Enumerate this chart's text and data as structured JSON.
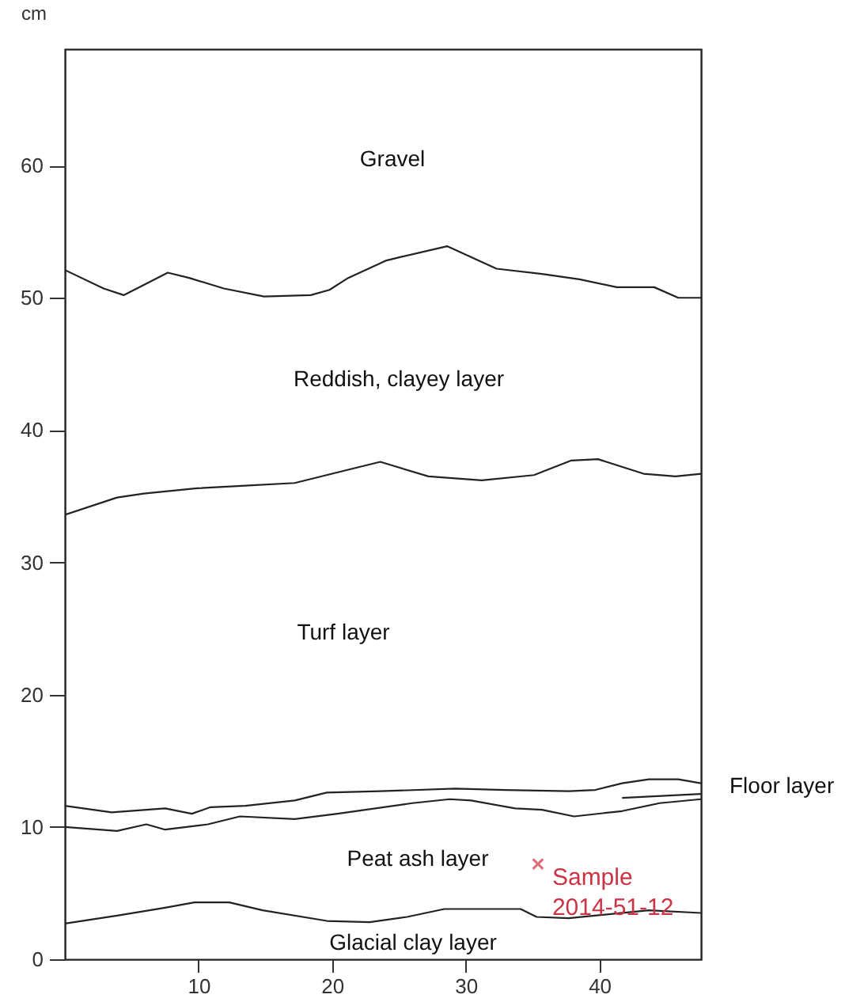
{
  "chart_data": {
    "type": "line",
    "ylabel": "cm",
    "xlim": [
      0,
      47.6
    ],
    "ylim": [
      0,
      68.8
    ],
    "xticks": [
      10,
      20,
      30,
      40
    ],
    "yticks": [
      0,
      10,
      20,
      30,
      40,
      50,
      60
    ],
    "grid": false,
    "line_style": "solid",
    "series": [
      {
        "color": "#222222",
        "x": [
          0,
          2.9,
          4.4,
          7.7,
          9.3,
          11.9,
          14.9,
          18.4,
          19.8,
          21.2,
          24.0,
          25.2,
          28.6,
          32.3,
          35.7,
          38.5,
          41.3,
          44.1,
          45.9,
          47.6
        ],
        "values": [
          52.1,
          50.7,
          50.2,
          51.9,
          51.5,
          50.7,
          50.1,
          50.2,
          50.6,
          51.5,
          52.8,
          53.1,
          53.9,
          52.2,
          51.8,
          51.4,
          50.8,
          50.8,
          50.0,
          50.0
        ]
      },
      {
        "color": "#222222",
        "x": [
          0,
          3.9,
          5.9,
          9.9,
          13.5,
          17.2,
          20.0,
          23.6,
          27.2,
          31.2,
          35.1,
          37.9,
          39.9,
          43.3,
          45.7,
          47.6
        ],
        "values": [
          33.6,
          34.9,
          35.2,
          35.6,
          35.8,
          36.0,
          36.7,
          37.6,
          36.5,
          36.2,
          36.6,
          37.7,
          37.8,
          36.7,
          36.5,
          36.7
        ]
      },
      {
        "color": "#222222",
        "x": [
          0,
          3.5,
          7.5,
          9.5,
          10.9,
          13.5,
          17.2,
          19.6,
          23.6,
          29.2,
          32.9,
          37.7,
          39.7,
          41.7,
          43.7,
          45.9,
          47.6
        ],
        "values": [
          11.6,
          11.1,
          11.4,
          11.0,
          11.5,
          11.6,
          12.0,
          12.6,
          12.7,
          12.9,
          12.8,
          12.7,
          12.8,
          13.3,
          13.6,
          13.6,
          13.3
        ]
      },
      {
        "color": "#222222",
        "x": [
          41.7,
          47.6
        ],
        "values": [
          12.2,
          12.5
        ]
      },
      {
        "color": "#222222",
        "x": [
          0,
          3.9,
          6.1,
          7.5,
          10.7,
          13.1,
          17.2,
          20.4,
          26.0,
          28.8,
          30.4,
          33.7,
          35.7,
          38.1,
          41.7,
          44.5,
          47.6
        ],
        "values": [
          10.0,
          9.7,
          10.2,
          9.8,
          10.2,
          10.8,
          10.6,
          11.0,
          11.8,
          12.1,
          12.0,
          11.4,
          11.3,
          10.8,
          11.2,
          11.8,
          12.1
        ]
      },
      {
        "color": "#222222",
        "x": [
          0,
          3.9,
          7.5,
          9.7,
          12.3,
          14.8,
          19.6,
          22.8,
          25.6,
          28.4,
          34.1,
          35.3,
          37.7,
          43.7,
          47.6
        ],
        "values": [
          2.7,
          3.3,
          3.9,
          4.3,
          4.3,
          3.7,
          2.9,
          2.8,
          3.2,
          3.8,
          3.8,
          3.2,
          3.1,
          3.7,
          3.5
        ]
      },
      {
        "type": "scatter",
        "marker": "cross",
        "name": "Sample\n2014-51-12",
        "color": "#cc3344",
        "x": [
          35.4
        ],
        "values": [
          7.2
        ]
      }
    ],
    "annotations": [
      "Gravel",
      "Reddish, clayey layer",
      "Turf layer",
      "Peat ash layer",
      "Glacial clay layer",
      "Floor layer"
    ]
  }
}
